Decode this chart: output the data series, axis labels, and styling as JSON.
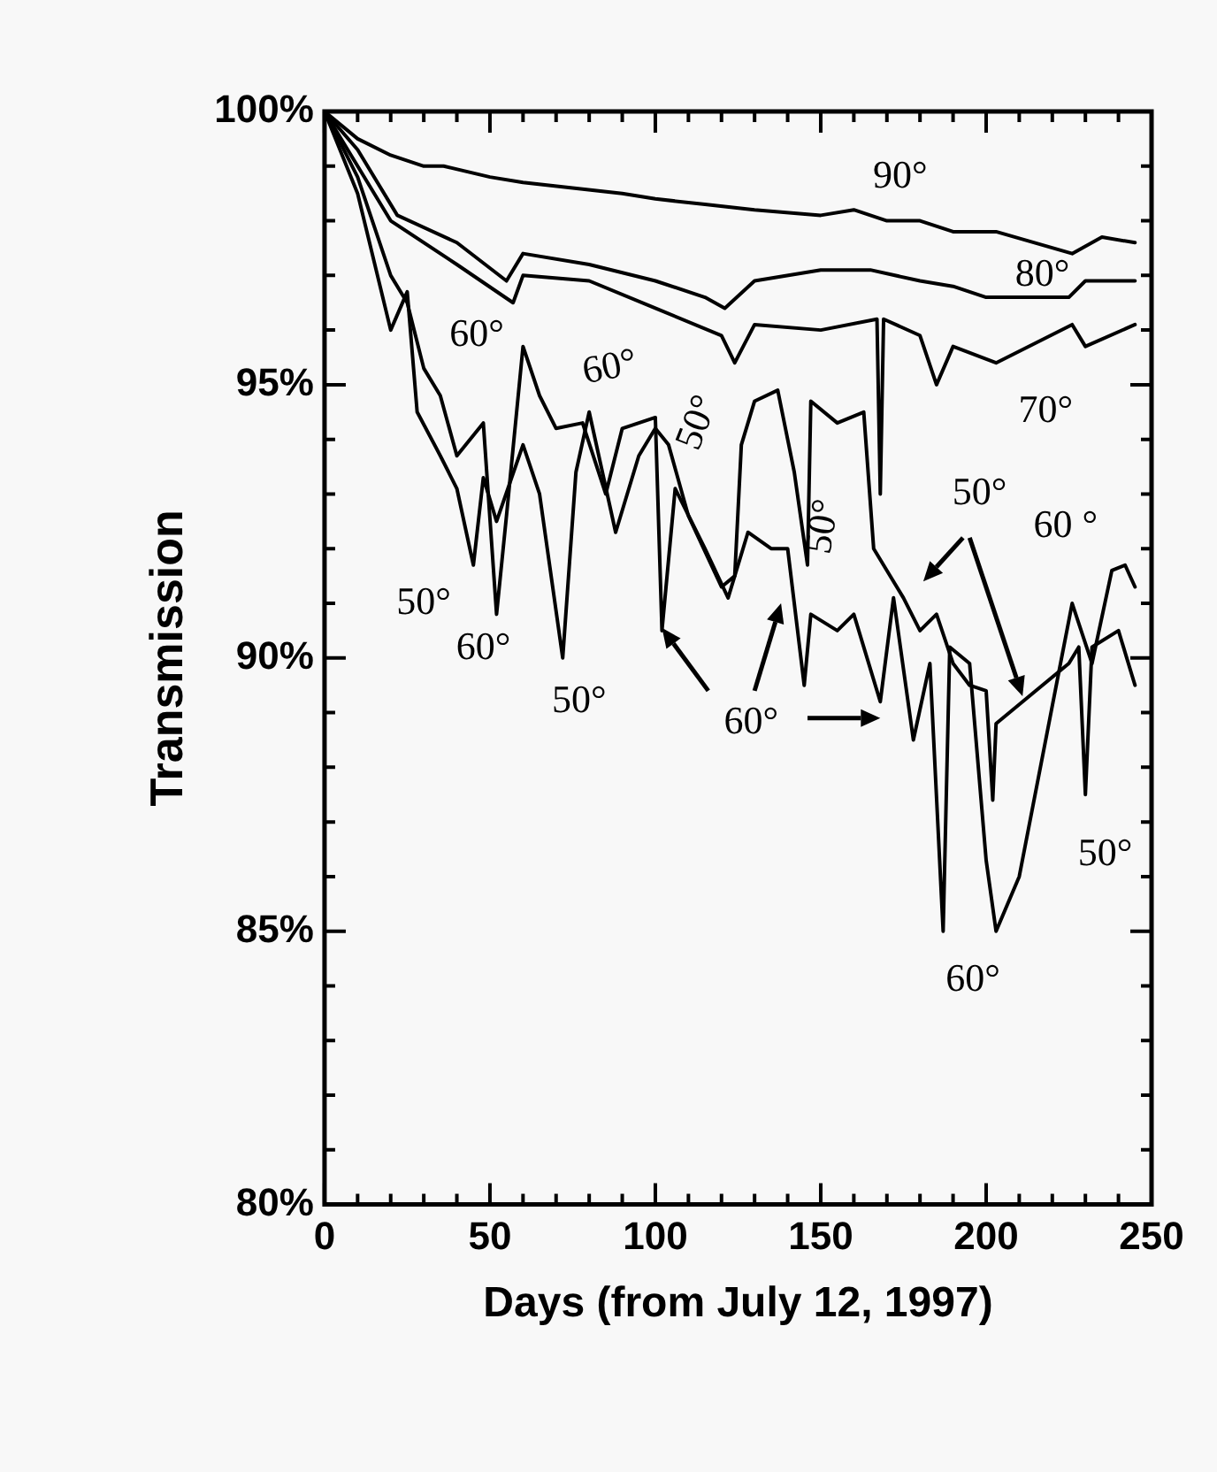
{
  "chart_data": {
    "type": "line",
    "xlabel": "Days (from July 12, 1997)",
    "ylabel": "Transmission",
    "marker": "none",
    "xlim": [
      0,
      250
    ],
    "ylim": [
      80,
      100
    ],
    "xticks": [
      0,
      {
        "value": 10,
        "label": null
      },
      {
        "value": 20,
        "label": null
      },
      {
        "value": 30,
        "label": null
      },
      {
        "value": 40,
        "label": null
      },
      50,
      {
        "value": 60,
        "label": null
      },
      {
        "value": 70,
        "label": null
      },
      {
        "value": 80,
        "label": null
      },
      {
        "value": 90,
        "label": null
      },
      100,
      {
        "value": 110,
        "label": null
      },
      {
        "value": 120,
        "label": null
      },
      {
        "value": 130,
        "label": null
      },
      {
        "value": 140,
        "label": null
      },
      150,
      {
        "value": 160,
        "label": null
      },
      {
        "value": 170,
        "label": null
      },
      {
        "value": 180,
        "label": null
      },
      {
        "value": 190,
        "label": null
      },
      200,
      {
        "value": 210,
        "label": null
      },
      {
        "value": 220,
        "label": null
      },
      {
        "value": 230,
        "label": null
      },
      {
        "value": 240,
        "label": null
      },
      250
    ],
    "yticks": [
      {
        "value": 80,
        "label": "80%"
      },
      {
        "value": 81,
        "label": null
      },
      {
        "value": 82,
        "label": null
      },
      {
        "value": 83,
        "label": null
      },
      {
        "value": 84,
        "label": null
      },
      {
        "value": 85,
        "label": "85%"
      },
      {
        "value": 86,
        "label": null
      },
      {
        "value": 87,
        "label": null
      },
      {
        "value": 88,
        "label": null
      },
      {
        "value": 89,
        "label": null
      },
      {
        "value": 90,
        "label": "90%"
      },
      {
        "value": 91,
        "label": null
      },
      {
        "value": 92,
        "label": null
      },
      {
        "value": 93,
        "label": null
      },
      {
        "value": 94,
        "label": null
      },
      {
        "value": 95,
        "label": "95%"
      },
      {
        "value": 96,
        "label": null
      },
      {
        "value": 97,
        "label": null
      },
      {
        "value": 98,
        "label": null
      },
      {
        "value": 99,
        "label": null
      },
      {
        "value": 100,
        "label": "100%"
      }
    ],
    "series": [
      {
        "color": "#000000",
        "x": [
          0,
          10,
          20,
          30,
          36,
          50,
          60,
          75,
          90,
          100,
          115,
          130,
          150,
          160,
          170,
          180,
          190,
          200,
          203,
          226,
          235,
          245
        ],
        "values": [
          100,
          99.5,
          99.2,
          99.0,
          99.0,
          98.8,
          98.7,
          98.6,
          98.5,
          98.4,
          98.3,
          98.2,
          98.1,
          98.2,
          98.0,
          98.0,
          97.8,
          97.8,
          97.8,
          97.4,
          97.7,
          97.6
        ]
      },
      {
        "color": "#000000",
        "x": [
          0,
          10,
          22,
          40,
          55,
          60,
          80,
          100,
          115,
          121,
          130,
          150,
          165,
          180,
          190,
          200,
          225,
          230,
          245
        ],
        "values": [
          100,
          99.3,
          98.1,
          97.6,
          96.9,
          97.4,
          97.2,
          96.9,
          96.6,
          96.4,
          96.9,
          97.1,
          97.1,
          96.9,
          96.8,
          96.6,
          96.6,
          96.9,
          96.9
        ]
      },
      {
        "color": "#000000",
        "x": [
          0,
          20,
          40,
          57,
          60,
          80,
          100,
          120,
          124,
          130,
          150,
          167,
          168,
          169,
          180,
          185,
          190,
          203,
          226,
          230,
          245
        ],
        "values": [
          100,
          98.0,
          97.2,
          96.5,
          97.0,
          96.9,
          96.4,
          95.9,
          95.4,
          96.1,
          96.0,
          96.2,
          93.0,
          96.2,
          95.9,
          95.0,
          95.7,
          95.4,
          96.1,
          95.7,
          96.1
        ]
      },
      {
        "color": "#000000",
        "x": [
          0,
          10,
          20,
          25,
          28,
          35,
          40,
          45,
          48,
          52,
          60,
          65,
          72,
          76,
          80,
          88,
          95,
          100,
          104,
          110,
          120,
          124,
          126,
          130,
          137,
          142,
          146,
          147,
          155,
          163,
          166,
          170,
          175,
          180,
          185,
          190,
          195,
          200,
          202,
          203,
          225,
          228,
          230,
          232,
          240,
          245
        ],
        "values": [
          100,
          98.5,
          96.0,
          96.7,
          94.5,
          93.7,
          93.1,
          91.7,
          93.3,
          92.5,
          93.9,
          93.0,
          90.0,
          93.4,
          94.5,
          92.3,
          93.7,
          94.2,
          93.9,
          92.6,
          91.3,
          91.5,
          93.9,
          94.7,
          94.9,
          93.4,
          91.7,
          94.7,
          94.3,
          94.5,
          92.0,
          91.6,
          91.1,
          90.5,
          90.8,
          89.9,
          89.5,
          89.4,
          87.4,
          88.8,
          89.9,
          90.2,
          87.5,
          90.2,
          90.5,
          89.5
        ]
      },
      {
        "color": "#000000",
        "x": [
          0,
          10,
          20,
          25,
          30,
          35,
          40,
          48,
          52,
          55,
          60,
          65,
          70,
          78,
          85,
          90,
          100,
          102,
          106,
          115,
          122,
          128,
          135,
          140,
          145,
          147,
          155,
          160,
          168,
          172,
          178,
          183,
          187,
          189,
          195,
          200,
          203,
          210,
          226,
          232,
          238,
          242,
          245
        ],
        "values": [
          100,
          98.8,
          97.0,
          96.5,
          95.3,
          94.8,
          93.7,
          94.3,
          90.8,
          92.6,
          95.7,
          94.8,
          94.2,
          94.3,
          93.0,
          94.2,
          94.4,
          90.5,
          93.1,
          92.0,
          91.1,
          92.3,
          92.0,
          92.0,
          89.5,
          90.8,
          90.5,
          90.8,
          89.2,
          91.1,
          88.5,
          89.9,
          85.0,
          90.2,
          89.9,
          86.3,
          85.0,
          86.0,
          91.0,
          89.9,
          91.6,
          91.7,
          91.3
        ]
      }
    ],
    "annotations": [
      "90°",
      "80°",
      "70°",
      "60°",
      "60°",
      "50°",
      "50°",
      "50°",
      "60°",
      "50°",
      "60°",
      "50°",
      "60 °",
      "50°",
      "60°"
    ]
  }
}
